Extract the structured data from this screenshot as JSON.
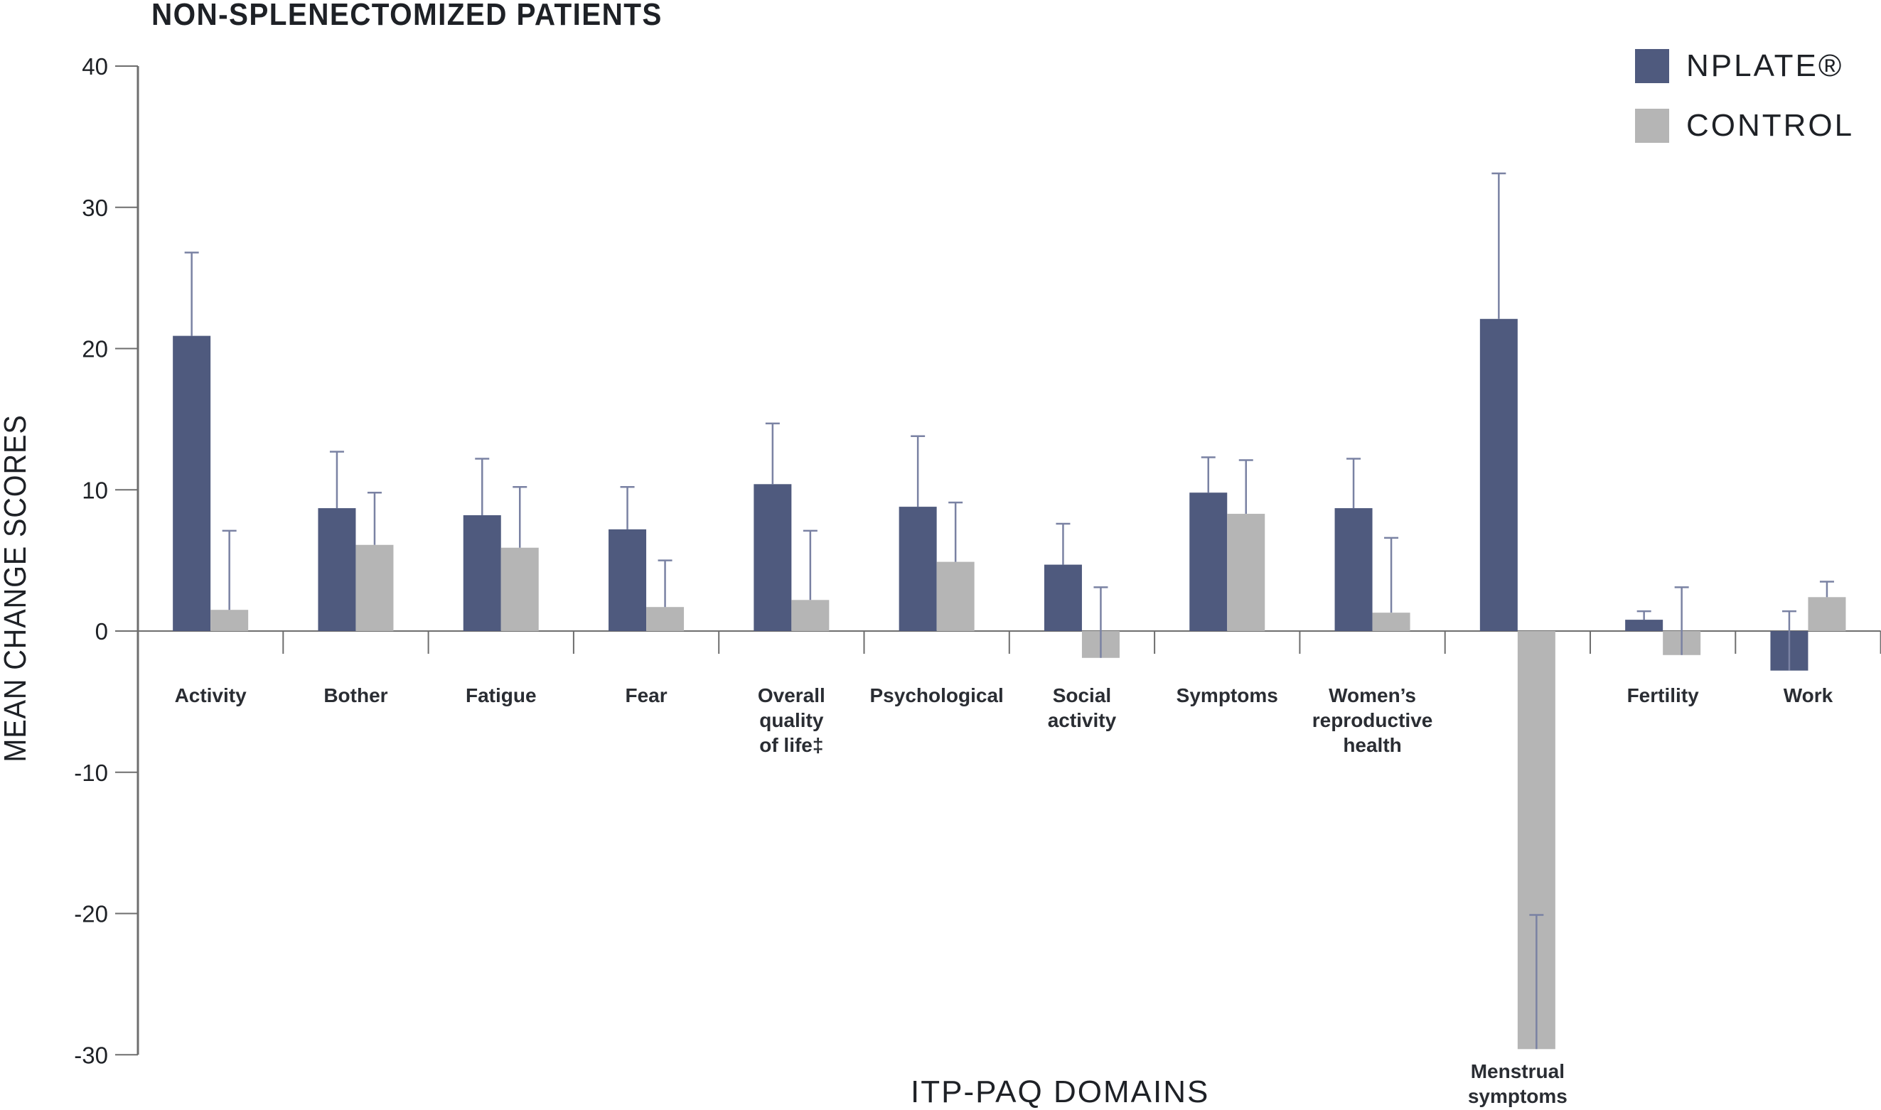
{
  "title": "NON-SPLENECTOMIZED PATIENTS",
  "y_axis_label": "MEAN CHANGE SCORES",
  "x_axis_label": "ITP-PAQ DOMAINS",
  "legend": [
    {
      "label": "NPLATE®",
      "color": "#4f5a7e"
    },
    {
      "label": "CONTROL",
      "color": "#b5b5b5"
    }
  ],
  "colors": {
    "nplate": "#4f5a7e",
    "control": "#b5b5b5",
    "error_bar": "#7a82a3",
    "axis": "#6e6e6e"
  },
  "chart_data": {
    "type": "bar",
    "title": "NON-SPLENECTOMIZED PATIENTS",
    "xlabel": "ITP-PAQ DOMAINS",
    "ylabel": "MEAN CHANGE SCORES",
    "ylim": [
      -30,
      40
    ],
    "yticks": [
      40,
      30,
      20,
      10,
      0,
      -10,
      -20,
      -30
    ],
    "grid": false,
    "legend_position": "top-right",
    "categories": [
      "Activity",
      "Bother",
      "Fatigue",
      "Fear",
      "Overall quality of life‡",
      "Psychological",
      "Social activity",
      "Symptoms",
      "Women’s reproductive health",
      "Menstrual symptoms",
      "Fertility",
      "Work"
    ],
    "category_label_lines": [
      [
        "Activity"
      ],
      [
        "Bother"
      ],
      [
        "Fatigue"
      ],
      [
        "Fear"
      ],
      [
        "Overall",
        "quality",
        "of life‡"
      ],
      [
        "Psychological"
      ],
      [
        "Social",
        "activity"
      ],
      [
        "Symptoms"
      ],
      [
        "Women’s",
        "reproductive",
        "health"
      ],
      [
        "Menstrual",
        "symptoms"
      ],
      [
        "Fertility"
      ],
      [
        "Work"
      ]
    ],
    "series": [
      {
        "name": "NPLATE®",
        "values": [
          20.9,
          8.7,
          8.2,
          7.2,
          10.4,
          8.8,
          4.7,
          9.8,
          8.7,
          22.1,
          0.8,
          -2.8
        ],
        "error_upper": [
          26.8,
          12.7,
          12.2,
          10.2,
          14.7,
          13.8,
          7.6,
          12.3,
          12.2,
          32.4,
          1.4,
          1.4
        ]
      },
      {
        "name": "CONTROL",
        "values": [
          1.5,
          6.1,
          5.9,
          1.7,
          2.2,
          4.9,
          -1.9,
          8.3,
          1.3,
          -29.6,
          -1.7,
          2.4
        ],
        "error_upper": [
          7.1,
          9.8,
          10.2,
          5.0,
          7.1,
          9.1,
          3.1,
          12.1,
          6.6,
          -20.1,
          3.1,
          3.5
        ]
      }
    ]
  }
}
